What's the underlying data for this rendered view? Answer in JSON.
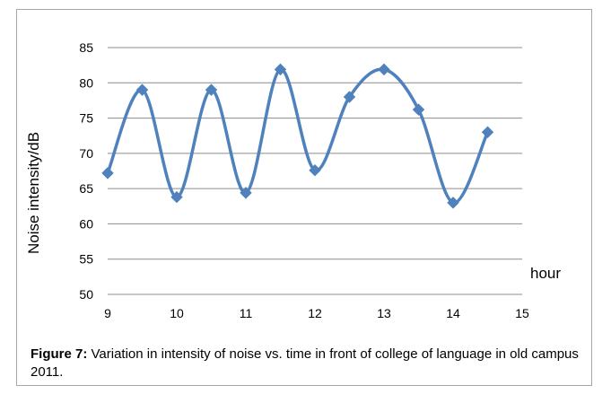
{
  "chart_data": {
    "type": "line",
    "smooth": true,
    "title": "",
    "xlabel": "hour",
    "ylabel": "Noise intensity/dB",
    "xlim": [
      9,
      15
    ],
    "ylim": [
      50,
      85
    ],
    "xticks": [
      9,
      10,
      11,
      12,
      13,
      14,
      15
    ],
    "yticks": [
      50,
      55,
      60,
      65,
      70,
      75,
      80,
      85
    ],
    "grid": "horizontal",
    "legend": "none",
    "series": [
      {
        "x": [
          9,
          9.5,
          10,
          10.5,
          11,
          11.5,
          12,
          12.5,
          13,
          13.5,
          14,
          14.5
        ],
        "y": [
          67.2,
          79,
          63.8,
          79,
          64.4,
          81.9,
          67.6,
          78,
          81.9,
          76.2,
          63,
          73
        ],
        "color": "#4f81bd",
        "marker": "diamond"
      }
    ]
  },
  "caption": {
    "label": "Figure 7:",
    "text": " Variation in intensity of noise vs. time in front of college of language in old campus 2011."
  }
}
